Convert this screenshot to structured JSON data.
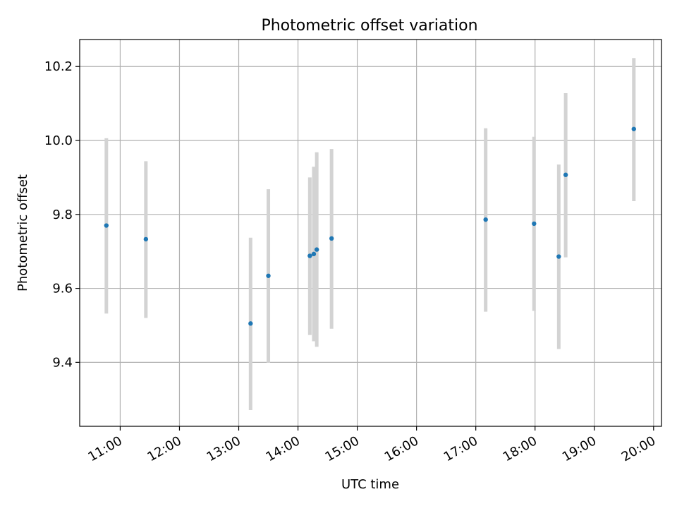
{
  "chart_data": {
    "type": "scatter",
    "title": "Photometric offset variation",
    "xlabel": "UTC time",
    "ylabel": "Photometric offset",
    "x_tick_labels": [
      "11:00",
      "12:00",
      "13:00",
      "14:00",
      "15:00",
      "16:00",
      "17:00",
      "18:00",
      "19:00",
      "20:00"
    ],
    "x_ticks": [
      "11:00",
      "12:00",
      "13:00",
      "14:00",
      "15:00",
      "16:00",
      "17:00",
      "18:00",
      "19:00",
      "20:00"
    ],
    "y_ticks": [
      9.4,
      9.6,
      9.8,
      10.0,
      10.2
    ],
    "y_tick_labels": [
      "9.4",
      "9.6",
      "9.8",
      "10.0",
      "10.2"
    ],
    "xlim": [
      "10:19",
      "20:08"
    ],
    "ylim": [
      9.227,
      10.273
    ],
    "grid": true,
    "x_tick_rotation": "30 degrees",
    "marker_color": "#1f77b4",
    "errorbar_color": "#d3d3d3",
    "grid_color": "#b0b0b0",
    "points": [
      {
        "time": "10:46",
        "value": 9.77,
        "err_low": 9.532,
        "err_high": 10.006
      },
      {
        "time": "11:26",
        "value": 9.733,
        "err_low": 9.52,
        "err_high": 9.944
      },
      {
        "time": "13:12",
        "value": 9.505,
        "err_low": 9.271,
        "err_high": 9.737
      },
      {
        "time": "13:30",
        "value": 9.634,
        "err_low": 9.399,
        "err_high": 9.868
      },
      {
        "time": "14:12",
        "value": 9.688,
        "err_low": 9.474,
        "err_high": 9.9
      },
      {
        "time": "14:16",
        "value": 9.693,
        "err_low": 9.457,
        "err_high": 9.929
      },
      {
        "time": "14:19",
        "value": 9.705,
        "err_low": 9.442,
        "err_high": 9.968
      },
      {
        "time": "14:34",
        "value": 9.735,
        "err_low": 9.491,
        "err_high": 9.977
      },
      {
        "time": "17:10",
        "value": 9.786,
        "err_low": 9.537,
        "err_high": 10.033
      },
      {
        "time": "17:59",
        "value": 9.775,
        "err_low": 9.539,
        "err_high": 10.01
      },
      {
        "time": "18:24",
        "value": 9.686,
        "err_low": 9.436,
        "err_high": 9.935
      },
      {
        "time": "18:31",
        "value": 9.907,
        "err_low": 9.684,
        "err_high": 10.128
      },
      {
        "time": "19:40",
        "value": 10.031,
        "err_low": 9.836,
        "err_high": 10.223
      }
    ]
  }
}
